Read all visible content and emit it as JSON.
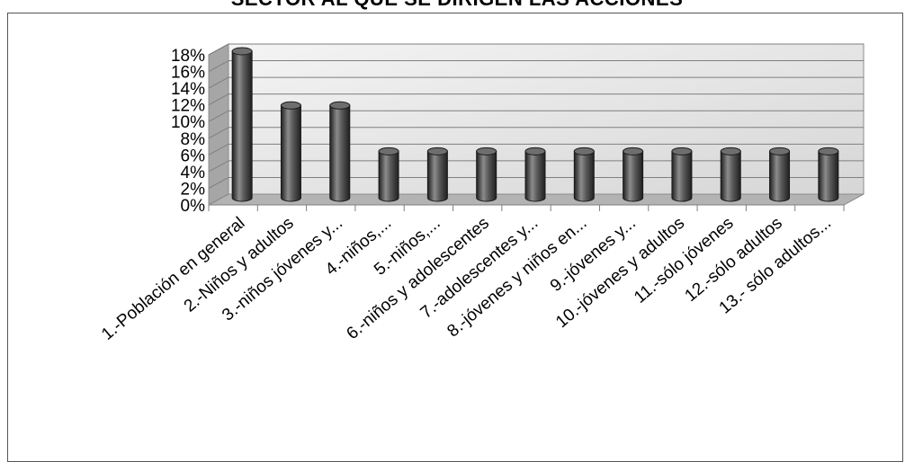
{
  "chart_data": {
    "type": "bar",
    "title": "SECTOR AL QUE SE DIRIGEN LAS ACCIONES",
    "xlabel": "",
    "ylabel": "",
    "ylim": [
      0,
      18
    ],
    "yticks": [
      "0%",
      "2%",
      "4%",
      "6%",
      "8%",
      "10%",
      "12%",
      "14%",
      "16%",
      "18%"
    ],
    "categories": [
      "1.-Población en general",
      "2.-Niños y adultos",
      "3.-niños jóvenes y...",
      "4.-niños,...",
      "5.-niños,...",
      "6.-niños y adolescentes",
      "7.-adolescentes y...",
      "8.-jóvenes y niños en...",
      "9.-jóvenes y...",
      "10.-jóvenes y adultos",
      "11.-sólo jóvenes",
      "12.-sólo adultos",
      "13.- sólo adultos..."
    ],
    "values": [
      18,
      11.5,
      11.5,
      6,
      6,
      6,
      6,
      6,
      6,
      6,
      6,
      6,
      6
    ],
    "unit": "%",
    "grid": true,
    "legend": "none",
    "style": "3d-cylinder",
    "colors": {
      "bar": "#595959",
      "bar_light": "#8c8c8c",
      "bar_dark": "#1f1f1f",
      "wall": "#ececec",
      "floor": "#b3b3b3",
      "grid": "#7f7f7f"
    }
  }
}
